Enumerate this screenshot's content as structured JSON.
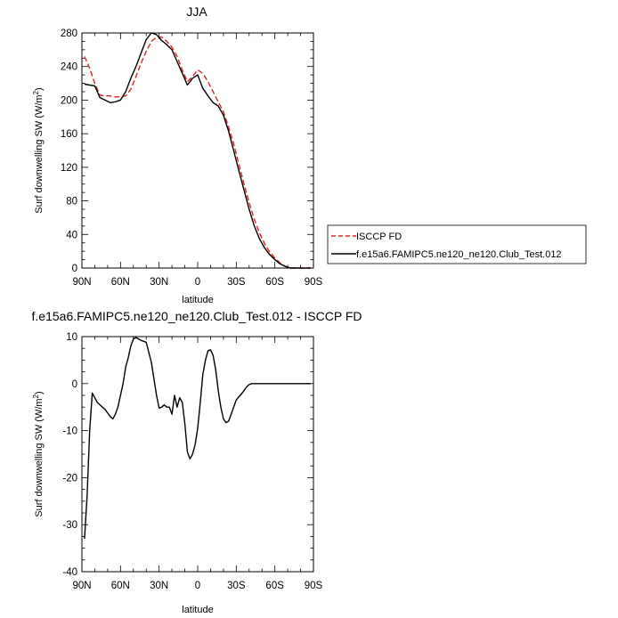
{
  "chart_data": [
    {
      "type": "line",
      "title": "JJA",
      "xlabel": "latitude",
      "ylabel": "Surf downwelling SW (W/m",
      "ylabel_sup": "2",
      "ylabel_close": ")",
      "xlim": [
        -90,
        90
      ],
      "ylim": [
        0,
        280
      ],
      "x_ticks": [
        -90,
        -60,
        -30,
        0,
        30,
        60,
        90
      ],
      "x_tick_labels": [
        "90N",
        "60N",
        "30N",
        "0",
        "30S",
        "60S",
        "90S"
      ],
      "y_ticks": [
        0,
        40,
        80,
        120,
        160,
        200,
        240,
        280
      ],
      "y_tick_labels": [
        "0",
        "40",
        "80",
        "120",
        "160",
        "200",
        "240",
        "280"
      ],
      "legend": {
        "placement": "right",
        "entries": [
          {
            "name": "ISCCP FD",
            "color": "#e02020",
            "dash": true
          },
          {
            "name": "f.e15a6.FAMIPC5.ne120_ne120.Club_Test.012",
            "color": "#000000",
            "dash": false
          }
        ]
      },
      "series": [
        {
          "name": "ISCCP FD",
          "color": "#e02020",
          "dash": true,
          "x": [
            -88,
            -84,
            -80,
            -76,
            -72,
            -68,
            -64,
            -60,
            -56,
            -52,
            -48,
            -44,
            -40,
            -36,
            -32,
            -28,
            -24,
            -20,
            -16,
            -12,
            -8,
            -4,
            0,
            4,
            8,
            12,
            16,
            20,
            24,
            28,
            32,
            36,
            40,
            44,
            48,
            52,
            56,
            60,
            64,
            68,
            72,
            76,
            80,
            84,
            88
          ],
          "values": [
            252,
            238,
            220,
            206,
            205,
            205,
            204,
            204,
            205,
            213,
            228,
            244,
            258,
            270,
            275,
            275,
            270,
            263,
            252,
            236,
            222,
            228,
            236,
            232,
            222,
            210,
            198,
            186,
            168,
            148,
            124,
            100,
            78,
            58,
            42,
            29,
            19,
            12,
            6,
            2,
            0,
            0,
            0,
            0,
            0
          ]
        },
        {
          "name": "f.e15a6.FAMIPC5.ne120_ne120.Club_Test.012",
          "color": "#000000",
          "dash": false,
          "x": [
            -88,
            -84,
            -80,
            -76,
            -72,
            -68,
            -64,
            -60,
            -56,
            -52,
            -48,
            -44,
            -40,
            -36,
            -32,
            -28,
            -24,
            -20,
            -16,
            -12,
            -8,
            -4,
            0,
            4,
            8,
            12,
            16,
            20,
            24,
            28,
            32,
            36,
            40,
            44,
            48,
            52,
            56,
            60,
            64,
            68,
            72,
            76,
            80,
            84,
            88
          ],
          "values": [
            219,
            218,
            217,
            203,
            200,
            197,
            198,
            200,
            210,
            226,
            240,
            256,
            272,
            280,
            278,
            271,
            266,
            260,
            246,
            232,
            218,
            226,
            230,
            214,
            205,
            197,
            193,
            182,
            163,
            140,
            116,
            93,
            70,
            50,
            35,
            24,
            16,
            10,
            5,
            2,
            0,
            0,
            0,
            0,
            0
          ]
        }
      ]
    },
    {
      "type": "line",
      "title": "f.e15a6.FAMIPC5.ne120_ne120.Club_Test.012 - ISCCP FD",
      "xlabel": "latitude",
      "ylabel": "Surf downwelling SW (W/m",
      "ylabel_sup": "2",
      "ylabel_close": ")",
      "xlim": [
        -90,
        90
      ],
      "ylim": [
        -40,
        10
      ],
      "x_ticks": [
        -90,
        -60,
        -30,
        0,
        30,
        60,
        90
      ],
      "x_tick_labels": [
        "90N",
        "60N",
        "30N",
        "0",
        "30S",
        "60S",
        "90S"
      ],
      "y_ticks": [
        -40,
        -30,
        -20,
        -10,
        0,
        10
      ],
      "y_tick_labels": [
        "-40",
        "-30",
        "-20",
        "-10",
        "0",
        "10"
      ],
      "series": [
        {
          "color": "#000000",
          "dash": false,
          "x": [
            -88,
            -86,
            -84,
            -82,
            -80,
            -78,
            -76,
            -72,
            -68,
            -66,
            -64,
            -62,
            -60,
            -58,
            -56,
            -54,
            -52,
            -50,
            -48,
            -46,
            -44,
            -42,
            -40,
            -36,
            -32,
            -30,
            -28,
            -26,
            -24,
            -22,
            -20,
            -18,
            -16,
            -14,
            -12,
            -10,
            -8,
            -6,
            -4,
            -2,
            0,
            2,
            4,
            6,
            8,
            10,
            12,
            14,
            16,
            18,
            20,
            22,
            24,
            26,
            28,
            30,
            32,
            34,
            36,
            38,
            40,
            42,
            44,
            46,
            48,
            52,
            56,
            60,
            64,
            68,
            72,
            76,
            80,
            84,
            88
          ],
          "values": [
            -33,
            -24,
            -10,
            -2,
            -3,
            -4,
            -4.5,
            -5.5,
            -7,
            -7.5,
            -6.5,
            -5,
            -2.5,
            0,
            3.5,
            5.5,
            8,
            9.5,
            9.8,
            9.5,
            9.2,
            9,
            8.8,
            4.5,
            -2.5,
            -5.2,
            -5,
            -4.5,
            -5,
            -5,
            -6.5,
            -2.5,
            -5,
            -3,
            -4,
            -8.5,
            -14.5,
            -16,
            -15,
            -13,
            -9.5,
            -4,
            2,
            5,
            7,
            7.2,
            6,
            3,
            -1.5,
            -5,
            -7.5,
            -8.3,
            -8,
            -6.5,
            -5,
            -3.5,
            -2.8,
            -2.2,
            -1.5,
            -0.7,
            -0.2,
            0,
            0,
            0,
            0,
            0,
            0,
            0,
            0,
            0,
            0,
            0,
            0,
            0,
            0
          ]
        }
      ]
    }
  ]
}
